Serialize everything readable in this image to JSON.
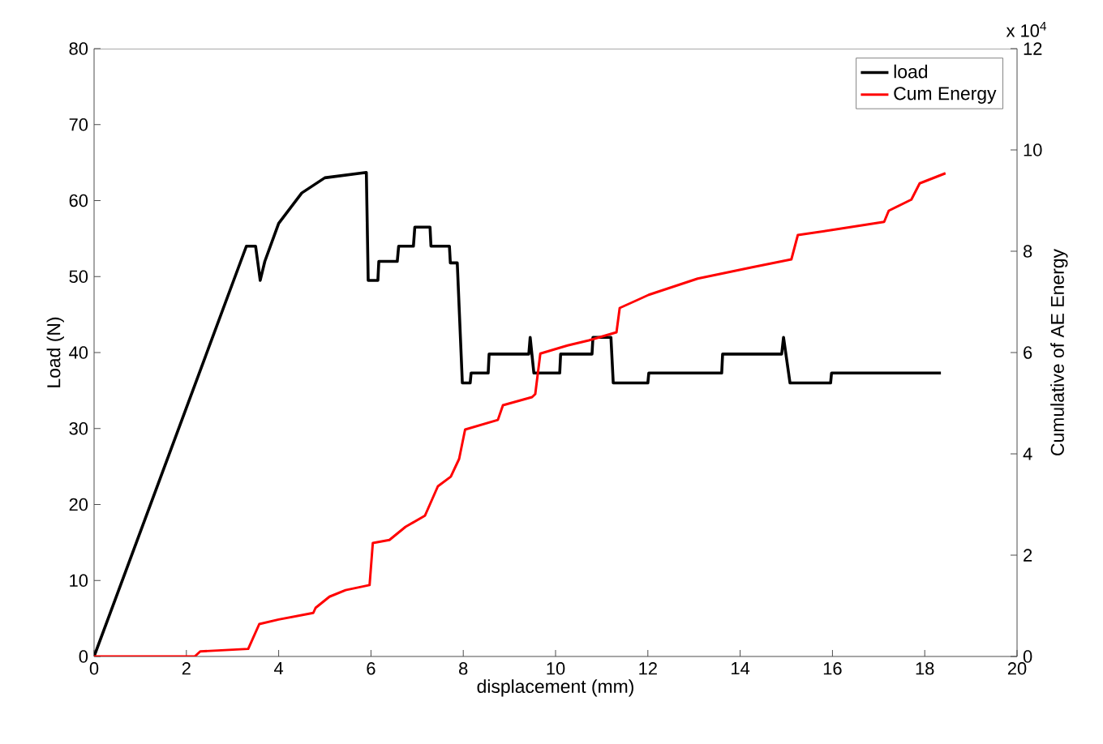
{
  "chart_data": {
    "type": "line",
    "xlabel": "displacement (mm)",
    "ylabel": "Load (N)",
    "y2label": "Cumulative of AE Energy",
    "xlim": [
      0,
      20
    ],
    "xticks": [
      0,
      2,
      4,
      6,
      8,
      10,
      12,
      14,
      16,
      18,
      20
    ],
    "ylim": [
      0,
      80
    ],
    "yticks": [
      0,
      10,
      20,
      30,
      40,
      50,
      60,
      70,
      80
    ],
    "y2lim": [
      0,
      12
    ],
    "y2ticks": [
      0,
      2,
      4,
      6,
      8,
      10,
      12
    ],
    "annotations": [
      "x 10$^{4}$"
    ],
    "legend": "top right",
    "grid": false,
    "marker": "none",
    "line_style": "solid",
    "series": [
      {
        "name": "load",
        "color": "#000000",
        "axis": "y",
        "x": [
          0,
          3.3,
          3.5,
          3.6,
          3.7,
          4.0,
          4.5,
          5.0,
          5.9,
          5.94,
          6.15,
          6.17,
          6.57,
          6.6,
          6.92,
          6.95,
          7.28,
          7.3,
          7.7,
          7.72,
          7.87,
          7.98,
          8.15,
          8.17,
          8.54,
          8.56,
          9.42,
          9.45,
          9.53,
          10.09,
          10.11,
          10.79,
          10.81,
          11.2,
          11.25,
          12.0,
          12.02,
          13.6,
          13.62,
          14.9,
          14.94,
          15.08,
          15.96,
          15.98,
          18.35
        ],
        "values": [
          0,
          54,
          54,
          49.5,
          52,
          57,
          61,
          63,
          63.7,
          49.5,
          49.5,
          52,
          52,
          54,
          54,
          56.5,
          56.5,
          54,
          54,
          51.8,
          51.8,
          36,
          36,
          37.3,
          37.3,
          39.8,
          39.8,
          42,
          37.3,
          37.3,
          39.8,
          39.8,
          42,
          42,
          36,
          36,
          37.3,
          37.3,
          39.8,
          39.8,
          42,
          36,
          36,
          37.3,
          37.3
        ]
      },
      {
        "name": "Cum Energy",
        "color": "#ff0000",
        "axis": "y2",
        "x": [
          0,
          2.18,
          2.3,
          3.34,
          3.58,
          4.0,
          4.75,
          4.8,
          5.1,
          5.45,
          5.97,
          6.04,
          6.4,
          6.75,
          7.17,
          7.45,
          7.73,
          7.91,
          8.04,
          8.75,
          8.86,
          9.49,
          9.56,
          9.67,
          10.26,
          10.72,
          11.32,
          11.39,
          11.78,
          12.02,
          13.08,
          14.24,
          15.11,
          15.25,
          15.99,
          17.12,
          17.22,
          17.71,
          17.89,
          18.45
        ],
        "values": [
          0,
          0,
          0.1,
          0.15,
          0.64,
          0.73,
          0.86,
          0.96,
          1.18,
          1.31,
          1.41,
          2.24,
          2.3,
          2.56,
          2.78,
          3.36,
          3.55,
          3.9,
          4.48,
          4.67,
          4.96,
          5.12,
          5.18,
          5.98,
          6.14,
          6.24,
          6.4,
          6.88,
          7.04,
          7.14,
          7.46,
          7.68,
          7.84,
          8.32,
          8.42,
          8.58,
          8.8,
          9.02,
          9.34,
          9.54
        ]
      }
    ]
  }
}
